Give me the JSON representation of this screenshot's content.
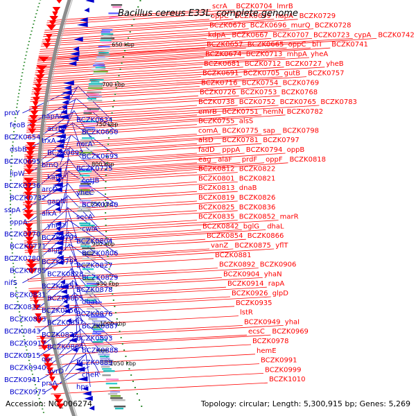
{
  "title": "Bacillus cereus E33L, complete genome",
  "accession": "Accession: NC_006274",
  "summary": "Topology: circular; Length: 5,300,915 bp; Genes: 5,269",
  "colors": {
    "forward": "#ff0000",
    "reverse": "#0000cc",
    "backbone": "#8c8c8c",
    "tick": "#2e8b2e"
  },
  "ticks": [
    "650 kbp",
    "700 kbp",
    "750 kbp",
    "800 kbp",
    "850 kbp",
    "900 kbp",
    "950 kbp",
    "1000 kbp",
    "1050 kbp"
  ],
  "right_labels": [
    [
      "scrA",
      "BCZK0704",
      "lmrB"
    ],
    [
      "oppC",
      "BCZK0699",
      "napA",
      "BCZK0729"
    ],
    [
      "BCZK0678",
      "BCZK0696",
      "murQ",
      "BCZK0728"
    ],
    [
      "kdpA",
      "BCZK0667",
      "BCZK0707",
      "BCZK0723",
      "cypA",
      "BCZK0742"
    ],
    [
      "BCZK0657",
      "BCZK0665",
      "oppC",
      "blT",
      "BCZK0741"
    ],
    [
      "BCZK0674",
      "BCZK0713",
      "mhpA",
      "yheA"
    ],
    [
      "BCZK0681",
      "BCZK0712",
      "BCZK0727",
      "yheB"
    ],
    [
      "BCZK0691",
      "BCZK0705",
      "gutB",
      "BCZK0757"
    ],
    [
      "BCZK0716",
      "BCZK0754",
      "BCZK0769"
    ],
    [
      "BCZK0726",
      "BCZK0753",
      "BCZK0768"
    ],
    [
      "BCZK0738",
      "BCZK0752",
      "BCZK0765",
      "BCZK0783"
    ],
    [
      "emrB",
      "BCZK0751",
      "hemN",
      "BCZK0782"
    ],
    [
      "BCZK0755",
      "alsS"
    ],
    [
      "comA",
      "BCZK0775",
      "sap",
      "BCZK0798"
    ],
    [
      "alsD",
      "BCZK0781",
      "BCZK0797"
    ],
    [
      "fadD",
      "pppA",
      "BCZK0794",
      "oppB"
    ],
    [
      "eag",
      "alaF",
      "prdF",
      "oppF",
      "BCZK0818"
    ],
    [
      "BCZK0812",
      "BCZK0822"
    ],
    [
      "BCZK0801",
      "BCZK0821"
    ],
    [
      "BCZK0813",
      "dnaB"
    ],
    [
      "BCZK0819",
      "BCZK0826"
    ],
    [
      "BCZK0825",
      "BCZK0836"
    ],
    [
      "BCZK0835",
      "BCZK0852",
      "marR"
    ],
    [
      "BCZK0842",
      "bglG",
      "dhaL"
    ],
    [
      "BCZK0854",
      "BCZK0866"
    ],
    [
      "vanZ",
      "BCZK0875",
      "yflT"
    ],
    [
      "BCZK0881"
    ],
    [
      "BCZK0892",
      "BCZK0906"
    ],
    [
      "BCZK0904",
      "yhaN"
    ],
    [
      "BCZK0914",
      "rapA"
    ],
    [
      "BCZK0926",
      "glpD"
    ],
    [
      "BCZK0935"
    ],
    [
      "lstR"
    ],
    [
      "BCZK0949",
      "yhaI"
    ],
    [
      "ecsC",
      "BCZK0969"
    ],
    [
      "BCZK0978"
    ],
    [
      "hemE"
    ],
    [
      "BCZK0991"
    ],
    [
      "BCZK0999"
    ],
    [
      "BCZK1010"
    ]
  ],
  "left_labels": [
    "proY",
    "napA",
    "BCZK0634",
    "feoB",
    "acrB",
    "BCZK0650",
    "BCZK0654",
    "trxA",
    "norA",
    "dsbB",
    "BCZK0692",
    "BCZK0693",
    "BCZK0695",
    "brnQ",
    "BCZK0725",
    "lipW",
    "katB",
    "cotJB",
    "BCZK0736",
    "arcD",
    "yheC",
    "BCZK0732",
    "gapN",
    "BCZK0740",
    "sspA",
    "alkA",
    "secA",
    "oppA",
    "yheD",
    "cwlA",
    "BCZK0770",
    "BCZK0791",
    "BCZK0804",
    "BCZK0771",
    "algI",
    "BCZK0806",
    "BCZK0780",
    "BCZK0795",
    "BCZK0827",
    "BCZK0785",
    "BCZK0828",
    "BCZK0829",
    "nifS",
    "BCZK0851",
    "BCZK0878",
    "BCZK0831",
    "BCZK0855",
    "dhaL",
    "BCZK0832",
    "BCZK0856",
    "BCZK0876",
    "BCZK0833",
    "BCZK0857",
    "BCZK0887",
    "BCZK0843",
    "BCZK0871",
    "BCZK0893",
    "BCZK0917",
    "BCZK0864",
    "BCZK0888",
    "BCZK0915",
    "qor",
    "BCZK0889",
    "BCZK0940",
    "uvrD",
    "cheR",
    "BCZK0941",
    "prsA",
    "hpr",
    "BCZK0975"
  ]
}
